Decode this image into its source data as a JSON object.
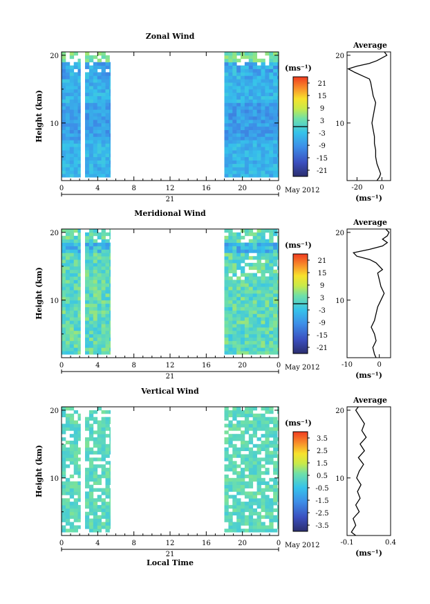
{
  "chart_data": [
    {
      "type": "heatmap",
      "title": "Zonal Wind",
      "ylabel": "Height (km)",
      "xlabel": "",
      "xlim": [
        0,
        24
      ],
      "ylim": [
        1.5,
        20.5
      ],
      "xticks": [
        "0",
        "4",
        "8",
        "12",
        "16",
        "20",
        "0"
      ],
      "yticks": [
        "10",
        "20"
      ],
      "date_day": "21",
      "date_label": "May 2012",
      "data_intervals_hours": [
        [
          0,
          2.1
        ],
        [
          2.6,
          5.4
        ],
        [
          18,
          24
        ]
      ],
      "colorbar": {
        "unit": "(ms⁻¹)",
        "ticks": [
          "21",
          "15",
          "9",
          "3",
          "-3",
          "-9",
          "-15",
          "-21"
        ],
        "range": [
          -24,
          24
        ]
      },
      "profile": {
        "title": "Average",
        "xlabel": "(ms⁻¹)",
        "xticks": [
          "-20",
          "0"
        ],
        "xlim": [
          -28,
          7
        ],
        "yticks": [
          "10",
          "20"
        ],
        "points": [
          [
            -4,
            1.5
          ],
          [
            -2,
            2
          ],
          [
            -1,
            2.5
          ],
          [
            -2,
            3
          ],
          [
            -3,
            3.5
          ],
          [
            -4,
            4
          ],
          [
            -5,
            5
          ],
          [
            -5,
            6
          ],
          [
            -6,
            7
          ],
          [
            -6,
            8
          ],
          [
            -7,
            9
          ],
          [
            -8,
            10
          ],
          [
            -7,
            11
          ],
          [
            -6,
            12
          ],
          [
            -5,
            13
          ],
          [
            -7,
            14
          ],
          [
            -8,
            15
          ],
          [
            -9,
            16
          ],
          [
            -10,
            16.5
          ],
          [
            -16,
            17
          ],
          [
            -22,
            17.5
          ],
          [
            -27,
            18
          ],
          [
            -20,
            18.4
          ],
          [
            -10,
            18.8
          ],
          [
            -4,
            19.2
          ],
          [
            0,
            19.6
          ],
          [
            4,
            20
          ],
          [
            2,
            20.5
          ]
        ]
      }
    },
    {
      "type": "heatmap",
      "title": "Meridional Wind",
      "ylabel": "Height (km)",
      "xlabel": "",
      "xlim": [
        0,
        24
      ],
      "ylim": [
        1.5,
        20.5
      ],
      "xticks": [
        "0",
        "4",
        "8",
        "12",
        "16",
        "20",
        "0"
      ],
      "yticks": [
        "10",
        "20"
      ],
      "date_day": "21",
      "date_label": "May 2012",
      "data_intervals_hours": [
        [
          0,
          2.1
        ],
        [
          2.6,
          5.4
        ],
        [
          18,
          24
        ]
      ],
      "colorbar": {
        "unit": "(ms⁻¹)",
        "ticks": [
          "21",
          "15",
          "9",
          "3",
          "-3",
          "-9",
          "-15",
          "-21"
        ],
        "range": [
          -24,
          24
        ]
      },
      "profile": {
        "title": "Average",
        "xlabel": "(ms⁻¹)",
        "xticks": [
          "-10",
          "0"
        ],
        "xlim": [
          -10,
          3.5
        ],
        "yticks": [
          "10",
          "20"
        ],
        "points": [
          [
            -1,
            1.5
          ],
          [
            -1.5,
            2
          ],
          [
            -2,
            3
          ],
          [
            -1,
            4
          ],
          [
            -1.5,
            5
          ],
          [
            -2.5,
            6
          ],
          [
            -1.5,
            7
          ],
          [
            -1,
            8
          ],
          [
            -0.5,
            9
          ],
          [
            0.5,
            10
          ],
          [
            1.5,
            11
          ],
          [
            0.5,
            12
          ],
          [
            0,
            13
          ],
          [
            -0.5,
            14
          ],
          [
            1,
            14.5
          ],
          [
            0,
            15
          ],
          [
            -1,
            15.5
          ],
          [
            -3,
            16
          ],
          [
            -7,
            16.5
          ],
          [
            -8,
            17
          ],
          [
            -3,
            17.5
          ],
          [
            1,
            18
          ],
          [
            2.5,
            18.5
          ],
          [
            1,
            19
          ],
          [
            2.5,
            19.5
          ],
          [
            3,
            20
          ],
          [
            2,
            20.5
          ]
        ]
      }
    },
    {
      "type": "heatmap",
      "title": "Vertical Wind",
      "ylabel": "Height (km)",
      "xlabel": "Local Time",
      "xlim": [
        0,
        24
      ],
      "ylim": [
        1.5,
        20.5
      ],
      "xticks": [
        "0",
        "4",
        "8",
        "12",
        "16",
        "20",
        "0"
      ],
      "yticks": [
        "10",
        "20"
      ],
      "date_day": "21",
      "date_label": "May 2012",
      "data_intervals_hours": [
        [
          0,
          2.1
        ],
        [
          2.6,
          5.4
        ],
        [
          18,
          24
        ]
      ],
      "colorbar": {
        "unit": "(ms⁻¹)",
        "ticks": [
          "3.5",
          "2.5",
          "1.5",
          "0.5",
          "-0.5",
          "-1.5",
          "-2.5",
          "-3.5"
        ],
        "range": [
          -4,
          4
        ]
      },
      "profile": {
        "title": "Average",
        "xlabel": "(ms⁻¹)",
        "xticks": [
          "-0.1",
          "0.4"
        ],
        "xlim": [
          -0.1,
          0.4
        ],
        "yticks": [
          "10",
          "20"
        ],
        "points": [
          [
            0.0,
            1.5
          ],
          [
            -0.05,
            2
          ],
          [
            0.0,
            3
          ],
          [
            -0.03,
            4
          ],
          [
            0.04,
            5
          ],
          [
            0.0,
            6
          ],
          [
            0.05,
            7
          ],
          [
            0.02,
            8
          ],
          [
            0.06,
            9
          ],
          [
            0.01,
            10
          ],
          [
            0.04,
            11
          ],
          [
            0.09,
            12
          ],
          [
            0.03,
            13
          ],
          [
            0.1,
            14
          ],
          [
            0.05,
            15
          ],
          [
            0.12,
            16
          ],
          [
            0.07,
            17
          ],
          [
            0.1,
            18
          ],
          [
            0.05,
            19
          ],
          [
            0.0,
            20
          ],
          [
            0.03,
            20.5
          ]
        ]
      }
    }
  ]
}
